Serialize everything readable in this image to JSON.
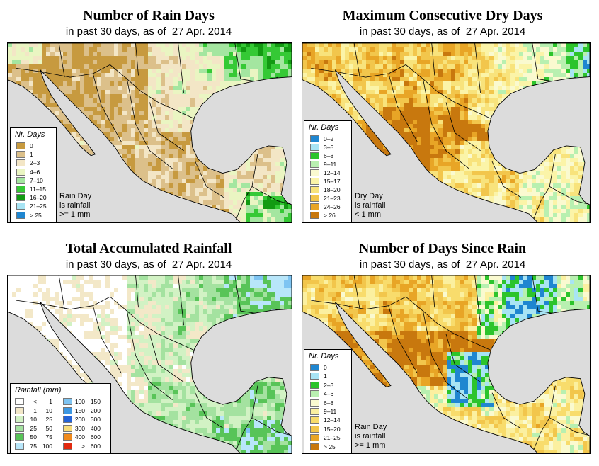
{
  "panels": [
    {
      "id": "rain-days",
      "title": "Number of Rain Days",
      "subtitle": "in past 30 days, as of  27 Apr. 2014",
      "legend": {
        "title": "Nr. Days",
        "items": [
          {
            "label": "0",
            "color": "#c79a3f"
          },
          {
            "label": "1",
            "color": "#dcc08a"
          },
          {
            "label": "2–3",
            "color": "#f3e6c6"
          },
          {
            "label": "4–6",
            "color": "#eaf5c2"
          },
          {
            "label": "7–10",
            "color": "#a4e6a0"
          },
          {
            "label": "11–15",
            "color": "#35c935"
          },
          {
            "label": "16–20",
            "color": "#129a12"
          },
          {
            "label": "21–25",
            "color": "#a8e4f4"
          },
          {
            "label": "> 25",
            "color": "#1f86d0"
          }
        ]
      },
      "note": [
        "Rain Day",
        "is rainfall",
        ">= 1 mm"
      ]
    },
    {
      "id": "dry-days",
      "title": "Maximum Consecutive Dry Days",
      "subtitle": "in past 30 days, as of  27 Apr. 2014",
      "legend": {
        "title": "Nr. Days",
        "items": [
          {
            "label": "0–2",
            "color": "#1f86d0"
          },
          {
            "label": "3–5",
            "color": "#a8e4f4"
          },
          {
            "label": "6–8",
            "color": "#2cc42c"
          },
          {
            "label": "9–11",
            "color": "#b8f0b0"
          },
          {
            "label": "12–14",
            "color": "#fafad0"
          },
          {
            "label": "15–17",
            "color": "#fbf4a8"
          },
          {
            "label": "18–20",
            "color": "#f8e37c"
          },
          {
            "label": "21–23",
            "color": "#f2c64c"
          },
          {
            "label": "24–26",
            "color": "#e8a526"
          },
          {
            "label": "> 26",
            "color": "#c8780e"
          }
        ]
      },
      "note": [
        "Dry Day",
        "is rainfall",
        "< 1 mm"
      ]
    },
    {
      "id": "total-rainfall",
      "title": "Total Accumulated Rainfall",
      "subtitle": "in past 30 days, as of  27 Apr. 2014",
      "legend": {
        "title": "Rainfall (mm)",
        "items": [
          {
            "lo": "<",
            "hi": "1",
            "color": "#ffffff"
          },
          {
            "lo": "1",
            "hi": "10",
            "color": "#f3e8c8"
          },
          {
            "lo": "10",
            "hi": "25",
            "color": "#d2f2c4"
          },
          {
            "lo": "25",
            "hi": "50",
            "color": "#a4e2a0"
          },
          {
            "lo": "50",
            "hi": "75",
            "color": "#58c458"
          },
          {
            "lo": "75",
            "hi": "100",
            "color": "#b8e6fa"
          },
          {
            "lo": "100",
            "hi": "150",
            "color": "#7ec4f2"
          },
          {
            "lo": "150",
            "hi": "200",
            "color": "#3d98e2"
          },
          {
            "lo": "200",
            "hi": "300",
            "color": "#2463d6"
          },
          {
            "lo": "300",
            "hi": "400",
            "color": "#f8dd78"
          },
          {
            "lo": "400",
            "hi": "600",
            "color": "#f08a1c"
          },
          {
            "lo": ">",
            "hi": "600",
            "color": "#e22a10"
          }
        ]
      }
    },
    {
      "id": "days-since-rain",
      "title": "Number of Days Since Rain",
      "subtitle": "in past 30 days, as of  27 Apr. 2014",
      "legend": {
        "title": "Nr. Days",
        "items": [
          {
            "label": "0",
            "color": "#1f86d0"
          },
          {
            "label": "1",
            "color": "#a8e4f4"
          },
          {
            "label": "2–3",
            "color": "#2cc42c"
          },
          {
            "label": "4–6",
            "color": "#b8f0b0"
          },
          {
            "label": "6–8",
            "color": "#fafad0"
          },
          {
            "label": "9–11",
            "color": "#fbf0a0"
          },
          {
            "label": "12–14",
            "color": "#f8dc6c"
          },
          {
            "label": "15–20",
            "color": "#f2c64c"
          },
          {
            "label": "21–25",
            "color": "#e8a526"
          },
          {
            "label": "> 25",
            "color": "#c8780e"
          }
        ]
      },
      "note": [
        "Rain Day",
        "is rainfall",
        ">= 1 mm"
      ]
    }
  ],
  "colors": {
    "ocean": "#dcdcdc",
    "outline": "#000000"
  }
}
